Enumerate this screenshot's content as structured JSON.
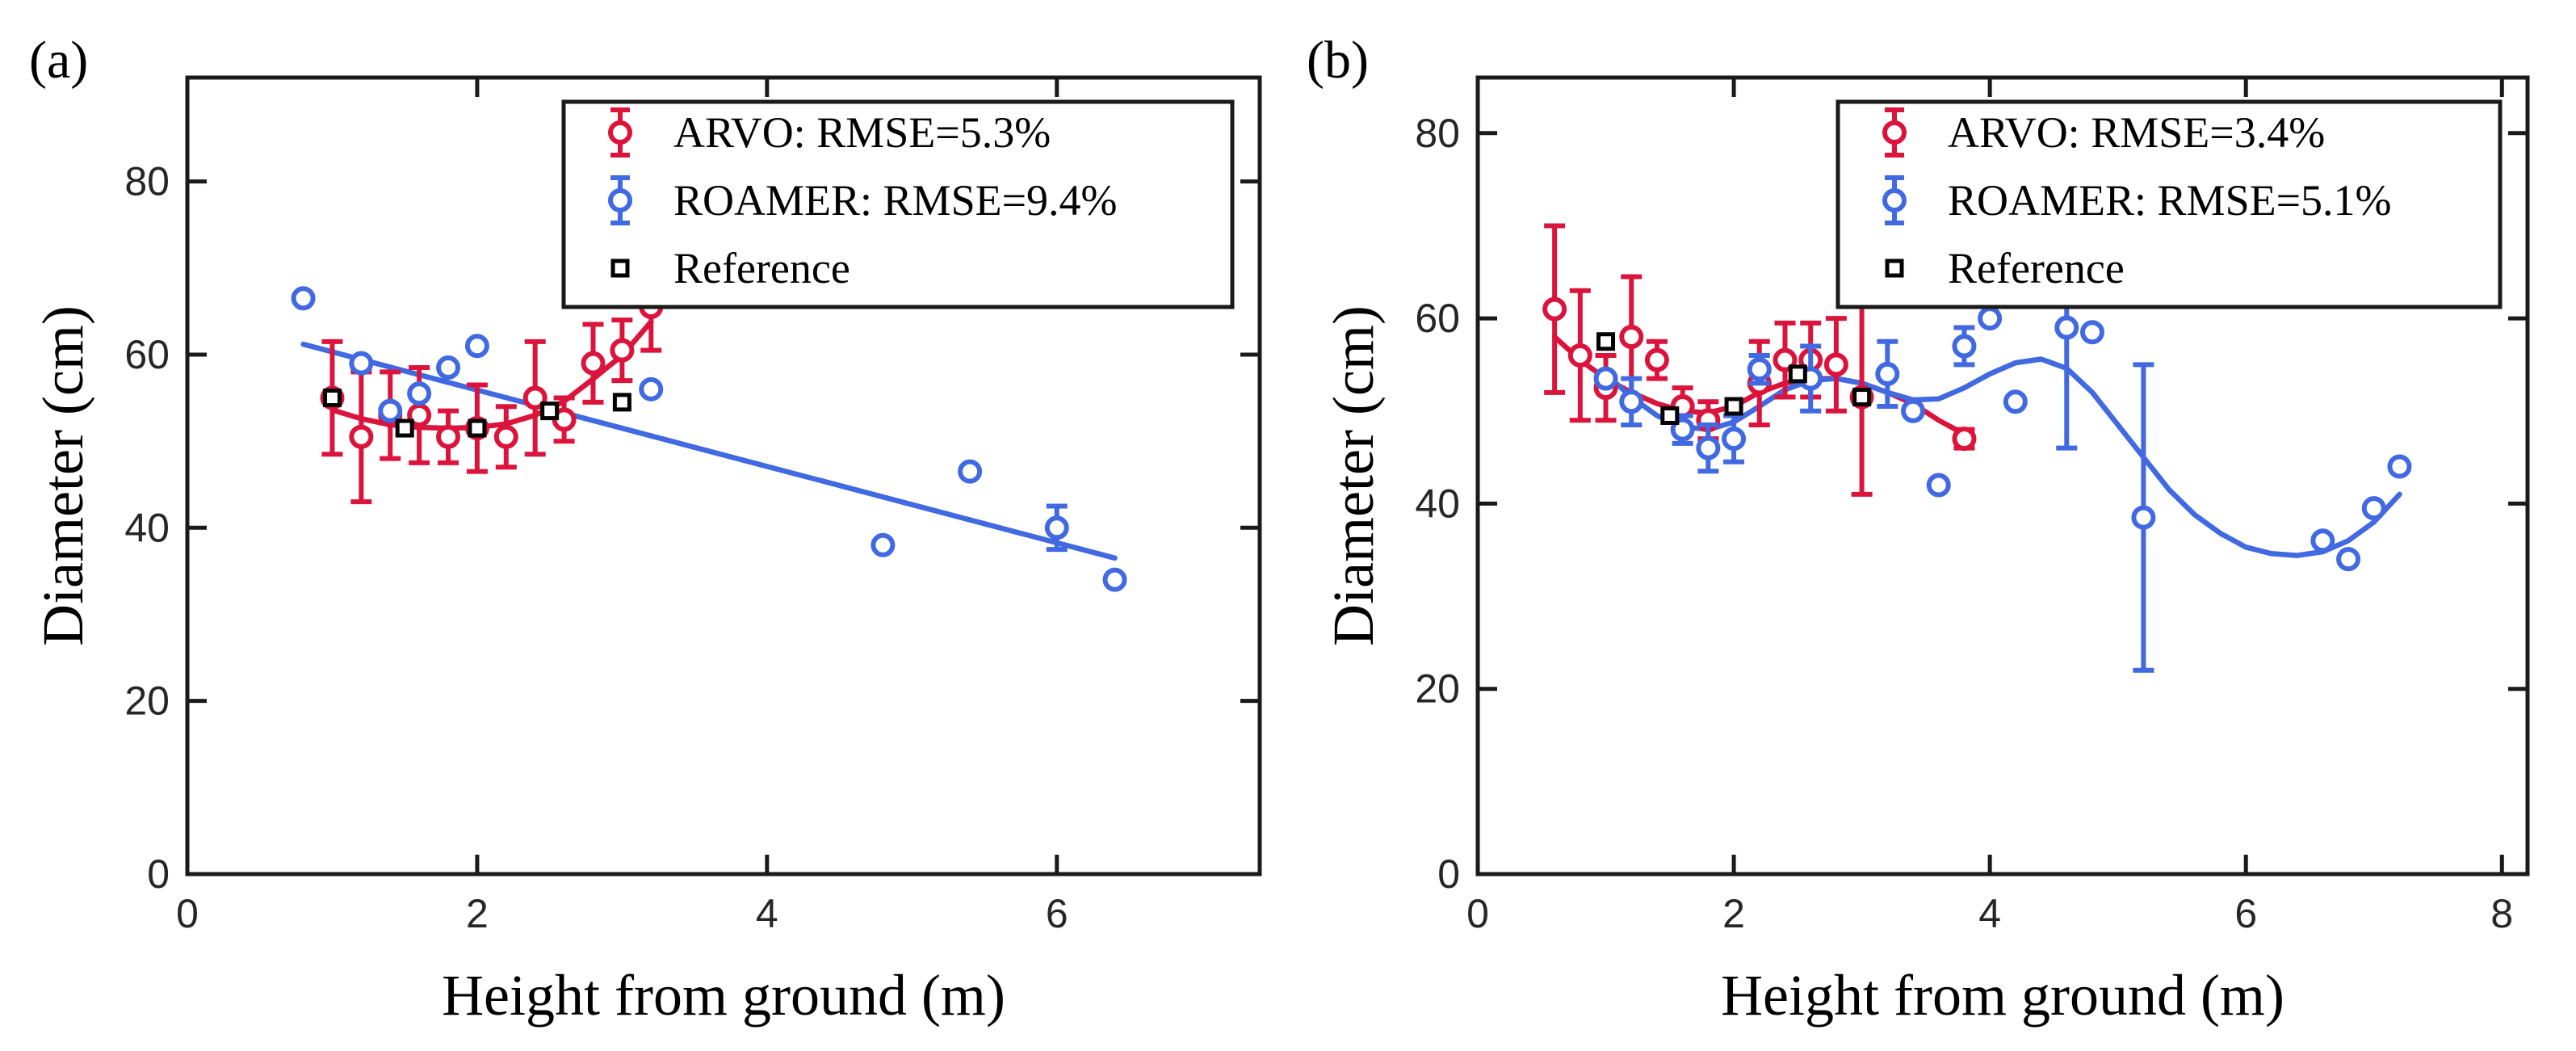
{
  "chart_data": [
    {
      "panel_label": "(a)",
      "type": "scatter",
      "xlabel": "Height from ground (m)",
      "ylabel": "Diameter (cm)",
      "xlim": [
        0,
        7.4
      ],
      "ylim": [
        0,
        92
      ],
      "xticks": [
        "0",
        "2",
        "4",
        "6"
      ],
      "yticks": [
        "0",
        "20",
        "40",
        "60",
        "80"
      ],
      "legend": {
        "placement": "top-right",
        "entries": [
          "ARVO: RMSE=5.3%",
          "ROAMER: RMSE=9.4%",
          "Reference"
        ]
      },
      "series": [
        {
          "name": "ARVO: RMSE=5.3%",
          "color": "#dc143c",
          "marker": "circle",
          "points": [
            {
              "x": 1.0,
              "y": 55.0,
              "err": 6.5
            },
            {
              "x": 1.2,
              "y": 50.5,
              "err": 7.5
            },
            {
              "x": 1.4,
              "y": 53.0,
              "err": 5.0
            },
            {
              "x": 1.6,
              "y": 53.0,
              "err": 5.5
            },
            {
              "x": 1.8,
              "y": 50.5,
              "err": 3.0
            },
            {
              "x": 2.0,
              "y": 51.5,
              "err": 5.0
            },
            {
              "x": 2.2,
              "y": 50.5,
              "err": 3.5
            },
            {
              "x": 2.4,
              "y": 55.0,
              "err": 6.5
            },
            {
              "x": 2.6,
              "y": 52.5,
              "err": 2.5
            },
            {
              "x": 2.8,
              "y": 59.0,
              "err": 4.5
            },
            {
              "x": 3.0,
              "y": 60.5,
              "err": 3.5
            },
            {
              "x": 3.2,
              "y": 65.5,
              "err": 5.0
            }
          ],
          "fit": [
            [
              1.0,
              53.6
            ],
            [
              1.2,
              52.6
            ],
            [
              1.4,
              51.9
            ],
            [
              1.6,
              51.6
            ],
            [
              1.8,
              51.5
            ],
            [
              2.0,
              51.6
            ],
            [
              2.2,
              52.0
            ],
            [
              2.4,
              53.0
            ],
            [
              2.6,
              54.6
            ],
            [
              2.8,
              57.2
            ],
            [
              3.0,
              59.9
            ],
            [
              3.2,
              63.8
            ]
          ]
        },
        {
          "name": "ROAMER: RMSE=9.4%",
          "color": "#4169e1",
          "marker": "circle",
          "points": [
            {
              "x": 0.8,
              "y": 66.5,
              "err": 0
            },
            {
              "x": 1.2,
              "y": 59.0,
              "err": 0
            },
            {
              "x": 1.4,
              "y": 53.5,
              "err": 0
            },
            {
              "x": 1.6,
              "y": 55.5,
              "err": 0
            },
            {
              "x": 1.8,
              "y": 58.5,
              "err": 0
            },
            {
              "x": 2.0,
              "y": 61.0,
              "err": 0
            },
            {
              "x": 3.2,
              "y": 56.0,
              "err": 0
            },
            {
              "x": 4.8,
              "y": 38.0,
              "err": 0
            },
            {
              "x": 5.4,
              "y": 46.5,
              "err": 0
            },
            {
              "x": 6.0,
              "y": 40.0,
              "err": 2.5
            },
            {
              "x": 6.4,
              "y": 34.0,
              "err": 0
            }
          ],
          "fit": [
            [
              0.8,
              61.2
            ],
            [
              6.4,
              36.5
            ]
          ]
        },
        {
          "name": "Reference",
          "color": "#000000",
          "marker": "square",
          "points": [
            {
              "x": 1.0,
              "y": 55.0
            },
            {
              "x": 1.5,
              "y": 51.5
            },
            {
              "x": 2.0,
              "y": 51.5
            },
            {
              "x": 2.5,
              "y": 53.5
            },
            {
              "x": 3.0,
              "y": 54.5
            }
          ]
        }
      ]
    },
    {
      "panel_label": "(b)",
      "type": "scatter",
      "xlabel": "Height from ground (m)",
      "ylabel": "Diameter (cm)",
      "xlim": [
        0,
        8.2
      ],
      "ylim": [
        0,
        86
      ],
      "xticks": [
        "0",
        "2",
        "4",
        "6",
        "8"
      ],
      "yticks": [
        "0",
        "20",
        "40",
        "60",
        "80"
      ],
      "legend": {
        "placement": "top-right",
        "entries": [
          "ARVO: RMSE=3.4%",
          "ROAMER: RMSE=5.1%",
          "Reference"
        ]
      },
      "series": [
        {
          "name": "ARVO: RMSE=3.4%",
          "color": "#dc143c",
          "marker": "circle",
          "points": [
            {
              "x": 0.6,
              "y": 61.0,
              "err": 9.0
            },
            {
              "x": 0.8,
              "y": 56.0,
              "err": 7.0
            },
            {
              "x": 1.0,
              "y": 52.5,
              "err": 3.5
            },
            {
              "x": 1.2,
              "y": 58.0,
              "err": 6.5
            },
            {
              "x": 1.4,
              "y": 55.5,
              "err": 2.0
            },
            {
              "x": 1.6,
              "y": 50.5,
              "err": 2.0
            },
            {
              "x": 1.8,
              "y": 49.0,
              "err": 2.0
            },
            {
              "x": 2.2,
              "y": 53.0,
              "err": 4.5
            },
            {
              "x": 2.4,
              "y": 55.5,
              "err": 4.0
            },
            {
              "x": 2.6,
              "y": 55.5,
              "err": 4.0
            },
            {
              "x": 2.8,
              "y": 55.0,
              "err": 5.0
            },
            {
              "x": 3.0,
              "y": 51.5,
              "err": 10.5
            },
            {
              "x": 3.8,
              "y": 47.0,
              "err": 1.0
            }
          ],
          "fit": [
            [
              0.6,
              58.0
            ],
            [
              0.8,
              55.5
            ],
            [
              1.0,
              53.5
            ],
            [
              1.2,
              52.0
            ],
            [
              1.4,
              50.8
            ],
            [
              1.6,
              50.0
            ],
            [
              1.8,
              49.8
            ],
            [
              2.0,
              50.5
            ],
            [
              2.2,
              52.0
            ],
            [
              2.4,
              53.0
            ],
            [
              2.6,
              53.5
            ],
            [
              2.8,
              53.5
            ],
            [
              3.0,
              53.0
            ],
            [
              3.2,
              52.0
            ],
            [
              3.4,
              50.8
            ],
            [
              3.6,
              49.0
            ],
            [
              3.8,
              47.5
            ]
          ]
        },
        {
          "name": "ROAMER: RMSE=5.1%",
          "color": "#4169e1",
          "marker": "circle",
          "points": [
            {
              "x": 1.0,
              "y": 53.5,
              "err": 0
            },
            {
              "x": 1.2,
              "y": 51.0,
              "err": 2.5
            },
            {
              "x": 1.6,
              "y": 48.0,
              "err": 1.5
            },
            {
              "x": 1.8,
              "y": 46.0,
              "err": 2.5
            },
            {
              "x": 2.0,
              "y": 47.0,
              "err": 2.5
            },
            {
              "x": 2.2,
              "y": 54.5,
              "err": 1.5
            },
            {
              "x": 2.6,
              "y": 53.5,
              "err": 3.5
            },
            {
              "x": 3.2,
              "y": 54.0,
              "err": 3.5
            },
            {
              "x": 3.4,
              "y": 50.0,
              "err": 0
            },
            {
              "x": 3.6,
              "y": 42.0,
              "err": 0
            },
            {
              "x": 3.8,
              "y": 57.0,
              "err": 2.0
            },
            {
              "x": 4.0,
              "y": 60.0,
              "err": 0
            },
            {
              "x": 4.2,
              "y": 51.0,
              "err": 0
            },
            {
              "x": 4.6,
              "y": 59.0,
              "err": 13.0
            },
            {
              "x": 4.8,
              "y": 58.5,
              "err": 0
            },
            {
              "x": 5.2,
              "y": 38.5,
              "err": 16.5
            },
            {
              "x": 6.6,
              "y": 36.0,
              "err": 0
            },
            {
              "x": 6.8,
              "y": 34.0,
              "err": 0
            },
            {
              "x": 7.0,
              "y": 39.5,
              "err": 0
            },
            {
              "x": 7.2,
              "y": 44.0,
              "err": 0
            }
          ],
          "fit": [
            [
              1.0,
              54.0
            ],
            [
              1.2,
              51.5
            ],
            [
              1.4,
              49.5
            ],
            [
              1.6,
              48.3
            ],
            [
              1.8,
              48.0
            ],
            [
              2.0,
              48.8
            ],
            [
              2.2,
              50.5
            ],
            [
              2.4,
              52.3
            ],
            [
              2.6,
              53.3
            ],
            [
              2.8,
              53.5
            ],
            [
              3.0,
              53.0
            ],
            [
              3.2,
              52.0
            ],
            [
              3.4,
              51.2
            ],
            [
              3.6,
              51.3
            ],
            [
              3.8,
              52.5
            ],
            [
              4.0,
              54.0
            ],
            [
              4.2,
              55.2
            ],
            [
              4.4,
              55.6
            ],
            [
              4.6,
              54.6
            ],
            [
              4.8,
              52.0
            ],
            [
              5.0,
              48.5
            ],
            [
              5.2,
              45.0
            ],
            [
              5.4,
              41.5
            ],
            [
              5.6,
              38.8
            ],
            [
              5.8,
              36.8
            ],
            [
              6.0,
              35.3
            ],
            [
              6.2,
              34.6
            ],
            [
              6.4,
              34.4
            ],
            [
              6.6,
              34.8
            ],
            [
              6.8,
              36.0
            ],
            [
              7.0,
              38.0
            ],
            [
              7.2,
              41.0
            ]
          ]
        },
        {
          "name": "Reference",
          "color": "#000000",
          "marker": "square",
          "points": [
            {
              "x": 1.0,
              "y": 57.5
            },
            {
              "x": 1.5,
              "y": 49.5
            },
            {
              "x": 2.0,
              "y": 50.5
            },
            {
              "x": 2.5,
              "y": 54.0
            },
            {
              "x": 3.0,
              "y": 51.5
            }
          ]
        }
      ]
    }
  ]
}
